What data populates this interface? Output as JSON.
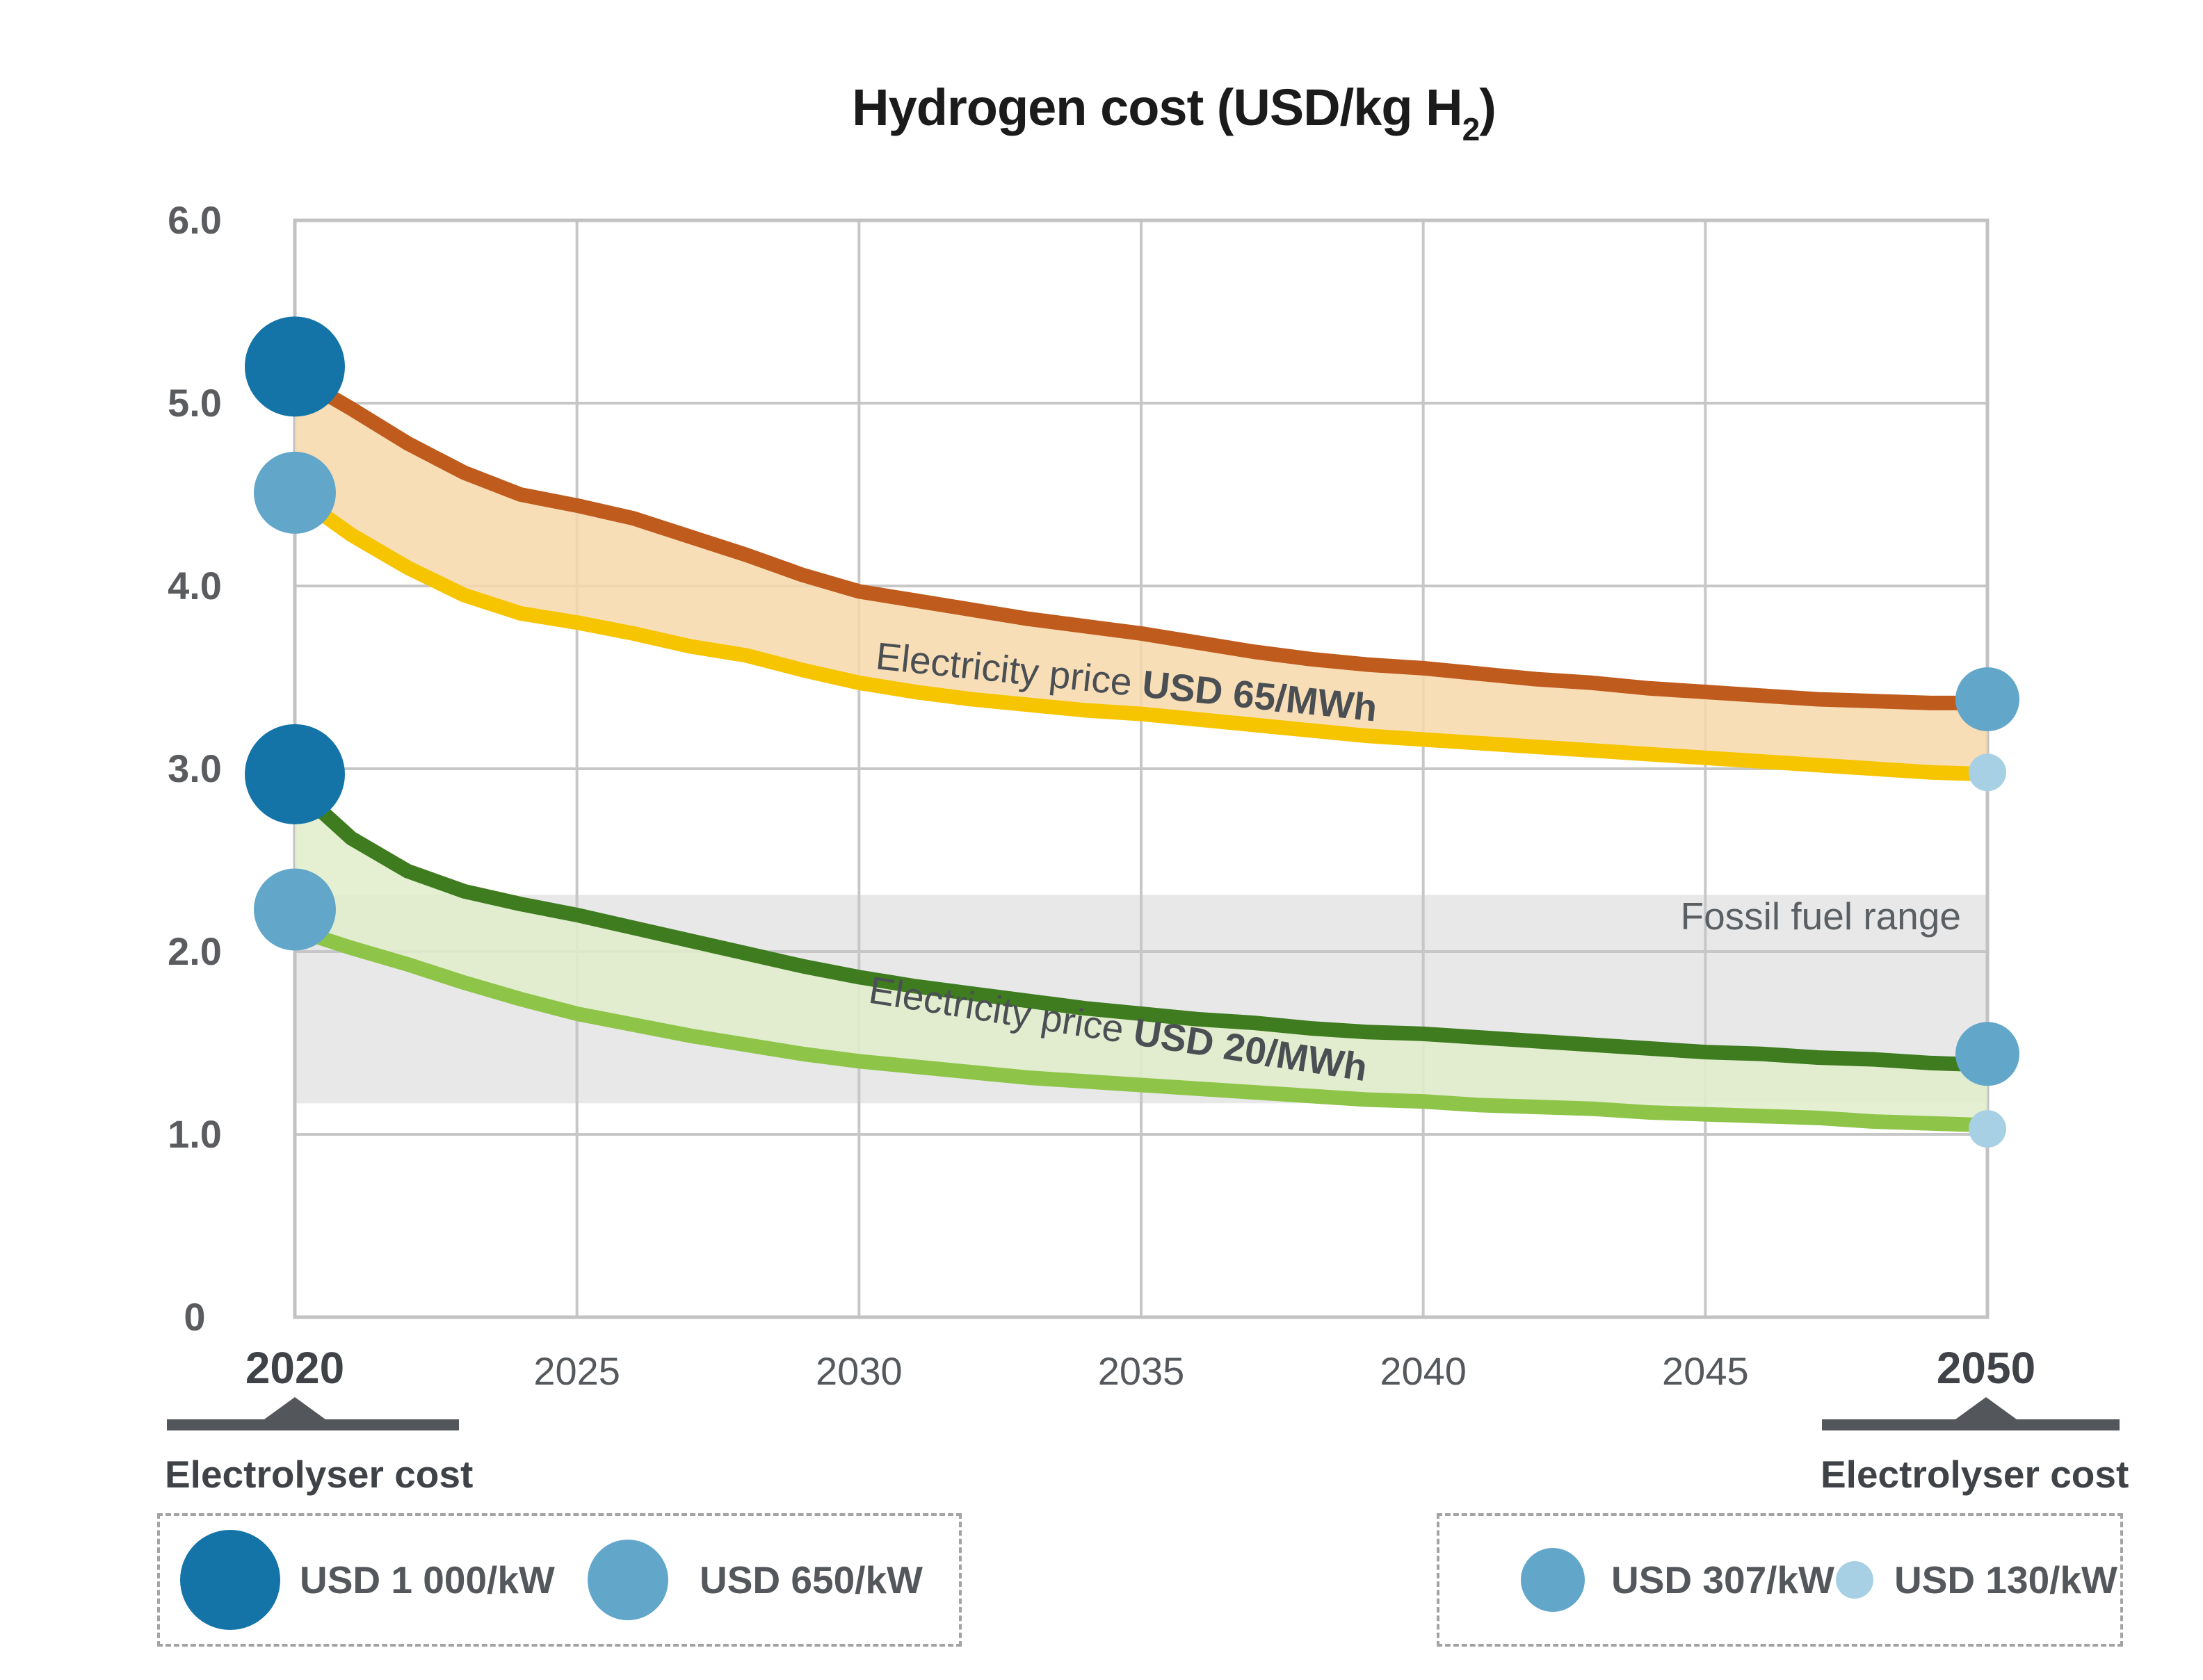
{
  "title": {
    "prefix": "Hydrogen cost (USD/kg H",
    "subscript": "2",
    "suffix": ")"
  },
  "chart_data": {
    "type": "area",
    "title": "Hydrogen cost (USD/kg H2)",
    "xlabel": "",
    "ylabel": "",
    "xlim": [
      2020,
      2050
    ],
    "ylim": [
      0,
      6.0
    ],
    "grid": true,
    "legend_position": "bottom",
    "yticks": [
      {
        "label": "6.0",
        "value": 6.0
      },
      {
        "label": "5.0",
        "value": 5.0
      },
      {
        "label": "4.0",
        "value": 4.0
      },
      {
        "label": "3.0",
        "value": 3.0
      },
      {
        "label": "2.0",
        "value": 2.0
      },
      {
        "label": "1.0",
        "value": 1.0
      },
      {
        "label": "0",
        "value": 0.0
      }
    ],
    "xticks_minor": [
      {
        "label": "2025",
        "value": 2025
      },
      {
        "label": "2030",
        "value": 2030
      },
      {
        "label": "2035",
        "value": 2035
      },
      {
        "label": "2040",
        "value": 2040
      },
      {
        "label": "2045",
        "value": 2045
      }
    ],
    "xticks_major": [
      {
        "label": "2020",
        "value": 2020
      },
      {
        "label": "2050",
        "value": 2050
      }
    ],
    "years": [
      2020,
      2021,
      2022,
      2023,
      2024,
      2025,
      2026,
      2027,
      2028,
      2029,
      2030,
      2031,
      2032,
      2033,
      2034,
      2035,
      2036,
      2037,
      2038,
      2039,
      2040,
      2041,
      2042,
      2043,
      2044,
      2045,
      2046,
      2047,
      2048,
      2049,
      2050
    ],
    "series": [
      {
        "name": "elec-65-electrolyser-high",
        "electricity_price": "USD 65/MWh",
        "electrolyser_cost_2020": "USD 1 000/kW",
        "electrolyser_cost_2050": "USD 307/kW",
        "color": "#c05b1e",
        "values": [
          5.15,
          4.97,
          4.78,
          4.62,
          4.5,
          4.44,
          4.37,
          4.27,
          4.17,
          4.06,
          3.97,
          3.92,
          3.87,
          3.82,
          3.78,
          3.74,
          3.69,
          3.64,
          3.6,
          3.57,
          3.55,
          3.52,
          3.49,
          3.47,
          3.44,
          3.42,
          3.4,
          3.38,
          3.37,
          3.36,
          3.36
        ]
      },
      {
        "name": "elec-65-electrolyser-low",
        "electricity_price": "USD 65/MWh",
        "electrolyser_cost_2020": "USD 650/kW",
        "electrolyser_cost_2050": "USD 130/kW",
        "color": "#f6c500",
        "values": [
          4.5,
          4.28,
          4.1,
          3.95,
          3.85,
          3.8,
          3.74,
          3.67,
          3.62,
          3.54,
          3.47,
          3.42,
          3.38,
          3.35,
          3.32,
          3.3,
          3.27,
          3.24,
          3.21,
          3.18,
          3.16,
          3.14,
          3.12,
          3.1,
          3.08,
          3.06,
          3.04,
          3.02,
          3.0,
          2.98,
          2.97
        ]
      },
      {
        "name": "elec-20-electrolyser-high",
        "electricity_price": "USD 20/MWh",
        "electrolyser_cost_2020": "USD 1 000/kW",
        "electrolyser_cost_2050": "USD 307/kW",
        "color": "#3e7c1f",
        "values": [
          2.9,
          2.62,
          2.44,
          2.33,
          2.26,
          2.2,
          2.13,
          2.06,
          1.99,
          1.92,
          1.86,
          1.81,
          1.77,
          1.73,
          1.69,
          1.66,
          1.63,
          1.61,
          1.58,
          1.56,
          1.55,
          1.53,
          1.51,
          1.49,
          1.47,
          1.45,
          1.44,
          1.42,
          1.41,
          1.39,
          1.38
        ]
      },
      {
        "name": "elec-20-electrolyser-low",
        "electricity_price": "USD 20/MWh",
        "electrolyser_cost_2020": "USD 650/kW",
        "electrolyser_cost_2050": "USD 130/kW",
        "color": "#8ec549",
        "values": [
          2.12,
          2.02,
          1.93,
          1.83,
          1.74,
          1.66,
          1.6,
          1.54,
          1.49,
          1.44,
          1.4,
          1.37,
          1.34,
          1.31,
          1.29,
          1.27,
          1.25,
          1.23,
          1.21,
          1.19,
          1.18,
          1.16,
          1.15,
          1.14,
          1.12,
          1.11,
          1.1,
          1.09,
          1.07,
          1.06,
          1.05
        ]
      }
    ],
    "bands": [
      {
        "name": "electricity-price-65",
        "label_regular": "Electricity price ",
        "label_bold": "USD 65/MWh",
        "top_series": 0,
        "bottom_series": 1,
        "fill": "#f7d9ab"
      },
      {
        "name": "electricity-price-20",
        "label_regular": "Electricity price ",
        "label_bold": "USD 20/MWh",
        "top_series": 2,
        "bottom_series": 3,
        "fill": "#e1eecb"
      }
    ],
    "fossil_band": {
      "label": "Fossil fuel range",
      "from": 1.17,
      "to": 2.31,
      "color": "#e8e8e8"
    },
    "markers": {
      "2020": [
        {
          "value": 5.2,
          "radius": 72,
          "color": "#1473a7",
          "cost": "USD 1 000/kW"
        },
        {
          "value": 4.51,
          "radius": 59,
          "color": "#62a6ca",
          "cost": "USD 650/kW"
        },
        {
          "value": 2.97,
          "radius": 72,
          "color": "#1473a7",
          "cost": "USD 1 000/kW"
        },
        {
          "value": 2.23,
          "radius": 59,
          "color": "#62a6ca",
          "cost": "USD 650/kW"
        }
      ],
      "2050": [
        {
          "value": 3.38,
          "radius": 46,
          "color": "#62a6ca",
          "cost": "USD 307/kW"
        },
        {
          "value": 2.98,
          "radius": 27,
          "color": "#a8d0e4",
          "cost": "USD 130/kW"
        },
        {
          "value": 1.44,
          "radius": 46,
          "color": "#62a6ca",
          "cost": "USD 307/kW"
        },
        {
          "value": 1.03,
          "radius": 27,
          "color": "#a8d0e4",
          "cost": "USD 130/kW"
        }
      ]
    }
  },
  "axis_annotations": {
    "left": {
      "year": "2020",
      "caption": "Electrolyser cost"
    },
    "right": {
      "year": "2050",
      "caption": "Electrolyser cost"
    }
  },
  "legend": {
    "left": {
      "items": [
        {
          "label": "USD 1 000/kW",
          "color": "#1473a7",
          "radius": 72
        },
        {
          "label": "USD 650/kW",
          "color": "#62a6ca",
          "radius": 58
        }
      ]
    },
    "right": {
      "items": [
        {
          "label": "USD 307/kW",
          "color": "#62a6ca",
          "radius": 46
        },
        {
          "label": "USD 130/kW",
          "color": "#a8d0e4",
          "radius": 27
        }
      ]
    }
  },
  "colors": {
    "grid": "#c7c7c7",
    "plot_border": "#c2c2c2",
    "axis_marker": "#53565a",
    "fossil_gray": "#e8e8e8",
    "title_text": "#1b1b1b",
    "tick_text": "#55585c",
    "band_label_text": "#4a4f54"
  }
}
